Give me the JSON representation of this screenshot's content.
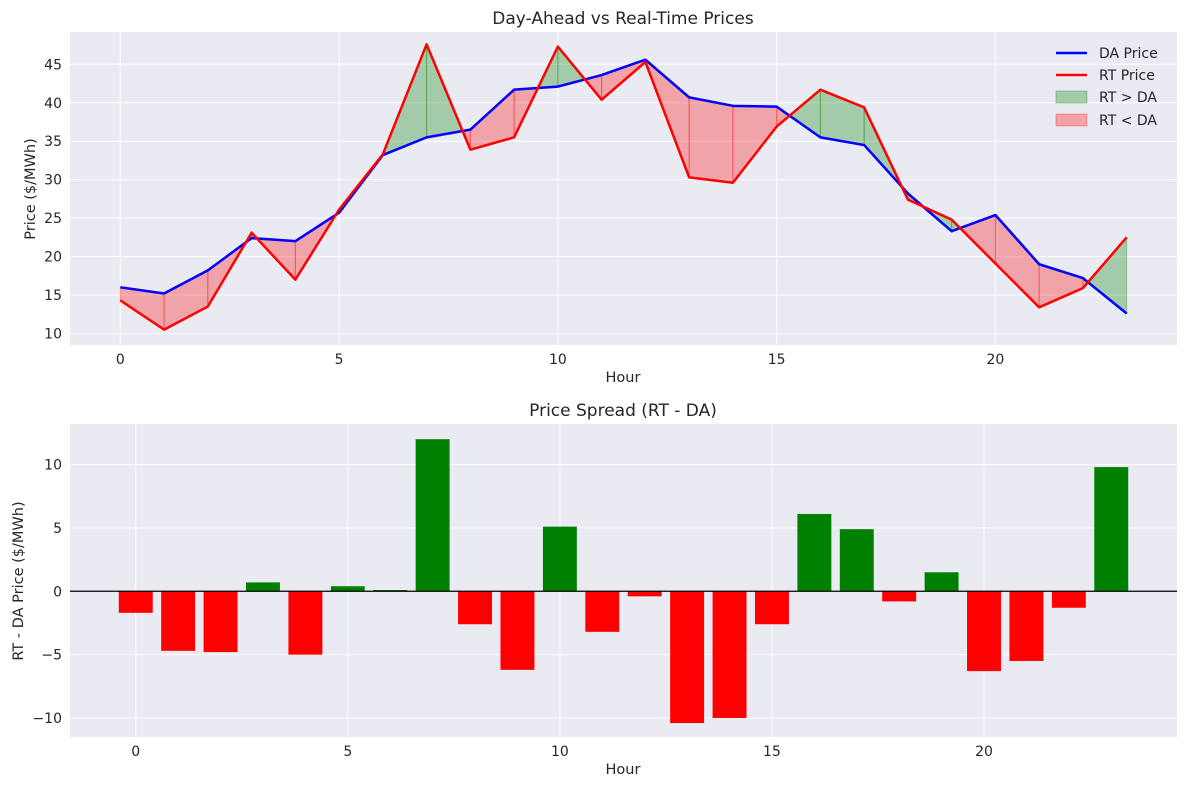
{
  "chart_data": [
    {
      "type": "line",
      "title": "Day-Ahead vs Real-Time Prices",
      "xlabel": "Hour",
      "ylabel": "Price ($/MWh)",
      "xlim": [
        -1.15,
        24.15
      ],
      "ylim": [
        8.5,
        49.2
      ],
      "xticks": [
        0,
        5,
        10,
        15,
        20
      ],
      "yticks": [
        10,
        15,
        20,
        25,
        30,
        35,
        40,
        45
      ],
      "grid": true,
      "legend_position": "top-right",
      "x": [
        0,
        1,
        2,
        3,
        4,
        5,
        6,
        7,
        8,
        9,
        10,
        11,
        12,
        13,
        14,
        15,
        16,
        17,
        18,
        19,
        20,
        21,
        22,
        23
      ],
      "series": [
        {
          "name": "DA Price",
          "color": "#0000ff",
          "values": [
            16.0,
            15.2,
            18.2,
            22.4,
            22.0,
            25.7,
            33.2,
            35.5,
            36.5,
            41.7,
            42.1,
            43.6,
            45.6,
            40.7,
            39.6,
            39.5,
            35.5,
            34.5,
            28.2,
            23.3,
            25.4,
            19.0,
            17.2,
            12.6
          ]
        },
        {
          "name": "RT Price",
          "color": "#ff0000",
          "values": [
            14.3,
            10.5,
            13.5,
            23.1,
            17.0,
            26.1,
            33.3,
            47.6,
            33.9,
            35.5,
            47.3,
            40.4,
            45.3,
            30.3,
            29.6,
            36.9,
            41.7,
            39.4,
            27.4,
            24.8,
            19.1,
            13.4,
            15.9,
            22.5
          ]
        }
      ],
      "fills": [
        {
          "name": "RT > DA",
          "color": "#008000"
        },
        {
          "name": "RT < DA",
          "color": "#ff0000"
        }
      ]
    },
    {
      "type": "bar",
      "title": "Price Spread (RT - DA)",
      "xlabel": "Hour",
      "ylabel": "RT - DA Price ($/MWh)",
      "xlim": [
        -1.55,
        24.55
      ],
      "ylim": [
        -11.5,
        13.2
      ],
      "xticks": [
        0,
        5,
        10,
        15,
        20
      ],
      "yticks": [
        -10,
        -5,
        0,
        5,
        10
      ],
      "grid": true,
      "zero_line": true,
      "positive_color": "#008000",
      "negative_color": "#ff0000",
      "x": [
        0,
        1,
        2,
        3,
        4,
        5,
        6,
        7,
        8,
        9,
        10,
        11,
        12,
        13,
        14,
        15,
        16,
        17,
        18,
        19,
        20,
        21,
        22,
        23
      ],
      "values": [
        -1.7,
        -4.7,
        -4.8,
        0.7,
        -5.0,
        0.4,
        0.1,
        12.0,
        -2.6,
        -6.2,
        5.1,
        -3.2,
        -0.4,
        -10.4,
        -10.0,
        -2.6,
        6.1,
        4.9,
        -0.8,
        1.5,
        -6.3,
        -5.5,
        -1.3,
        9.8
      ]
    }
  ]
}
